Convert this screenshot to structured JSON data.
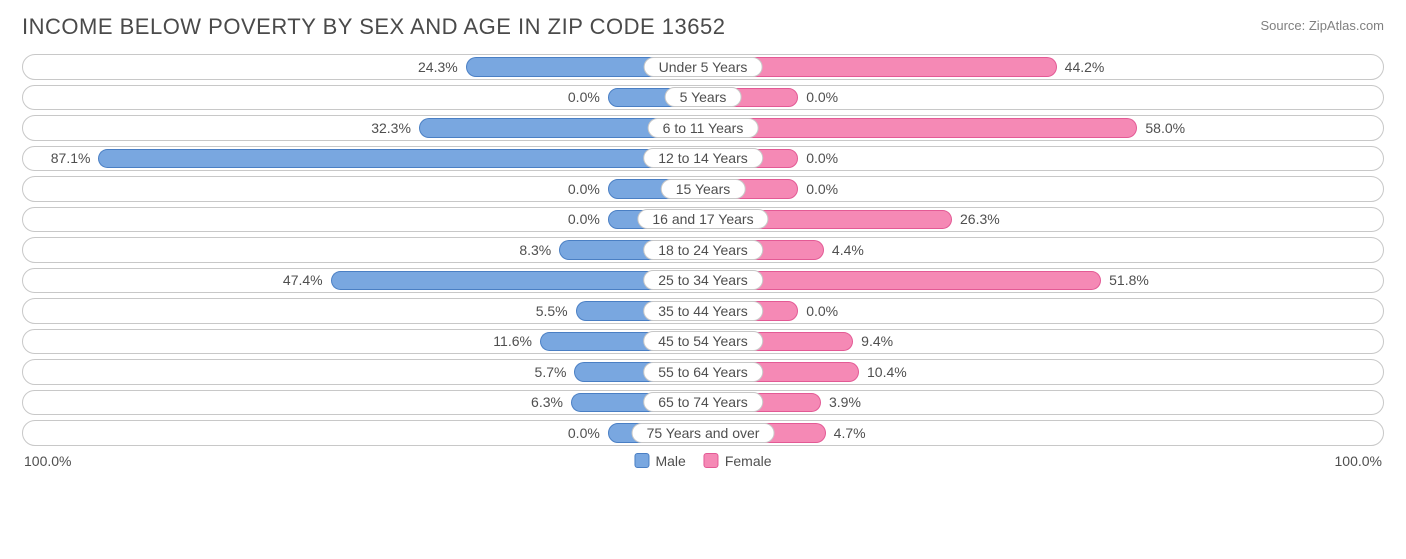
{
  "header": {
    "title": "INCOME BELOW POVERTY BY SEX AND AGE IN ZIP CODE 13652",
    "source": "Source: ZipAtlas.com"
  },
  "chart": {
    "type": "diverging-bar",
    "male_color": "#79a7e0",
    "male_border": "#4a7fc4",
    "female_color": "#f589b5",
    "female_border": "#e35a95",
    "fixed_min_pct": 14,
    "track_border": "#c8c8c8",
    "rows": [
      {
        "label": "Under 5 Years",
        "male": 24.3,
        "female": 44.2
      },
      {
        "label": "5 Years",
        "male": 0.0,
        "female": 0.0
      },
      {
        "label": "6 to 11 Years",
        "male": 32.3,
        "female": 58.0
      },
      {
        "label": "12 to 14 Years",
        "male": 87.1,
        "female": 0.0
      },
      {
        "label": "15 Years",
        "male": 0.0,
        "female": 0.0
      },
      {
        "label": "16 and 17 Years",
        "male": 0.0,
        "female": 26.3
      },
      {
        "label": "18 to 24 Years",
        "male": 8.3,
        "female": 4.4
      },
      {
        "label": "25 to 34 Years",
        "male": 47.4,
        "female": 51.8
      },
      {
        "label": "35 to 44 Years",
        "male": 5.5,
        "female": 0.0
      },
      {
        "label": "45 to 54 Years",
        "male": 11.6,
        "female": 9.4
      },
      {
        "label": "55 to 64 Years",
        "male": 5.7,
        "female": 10.4
      },
      {
        "label": "65 to 74 Years",
        "male": 6.3,
        "female": 3.9
      },
      {
        "label": "75 Years and over",
        "male": 0.0,
        "female": 4.7
      }
    ],
    "axis": {
      "left": "100.0%",
      "right": "100.0%"
    },
    "legend": {
      "male": "Male",
      "female": "Female"
    }
  }
}
